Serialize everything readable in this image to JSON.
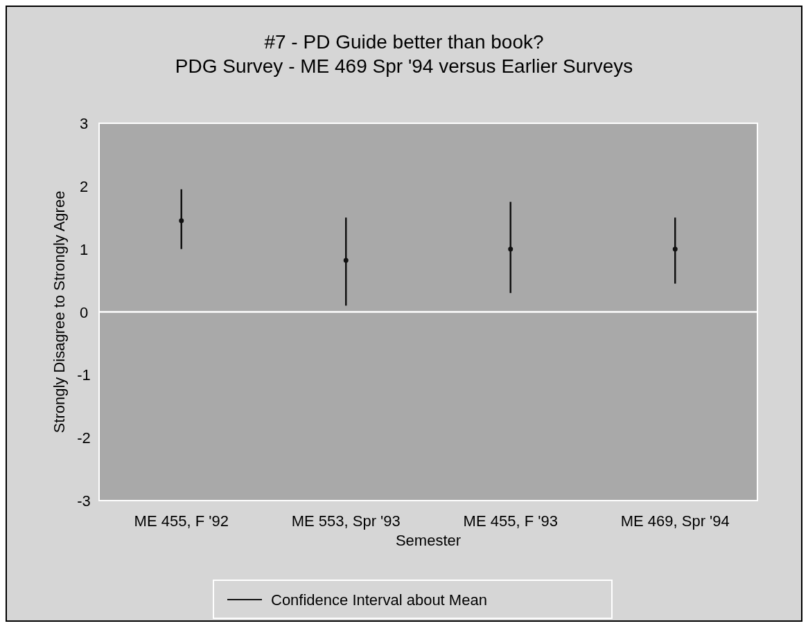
{
  "chart_data": {
    "type": "scatter",
    "title": "#7 - PD Guide better than book?",
    "subtitle": "PDG Survey - ME 469 Spr '94 versus Earlier Surveys",
    "xlabel": "Semester",
    "ylabel": "Strongly Disagree to Strongly Agree",
    "categories": [
      "ME 455, F '92",
      "ME 553, Spr '93",
      "ME 455, F '93",
      "ME 469, Spr '94"
    ],
    "series": [
      {
        "name": "Confidence Interval about Mean",
        "color": "#111111",
        "values": [
          1.45,
          0.82,
          1.0,
          1.0
        ],
        "errors": [
          [
            1.0,
            1.95
          ],
          [
            0.1,
            1.5
          ],
          [
            0.3,
            1.75
          ],
          [
            0.45,
            1.5
          ]
        ]
      }
    ],
    "ylim": [
      -3,
      3
    ],
    "yticks": [
      -3,
      -2,
      -1,
      0,
      1,
      2,
      3
    ],
    "ref_lines": [
      {
        "axis": "y",
        "value": 0,
        "color": "#ffffff"
      }
    ],
    "legend": "bottom",
    "marker": "circle"
  }
}
